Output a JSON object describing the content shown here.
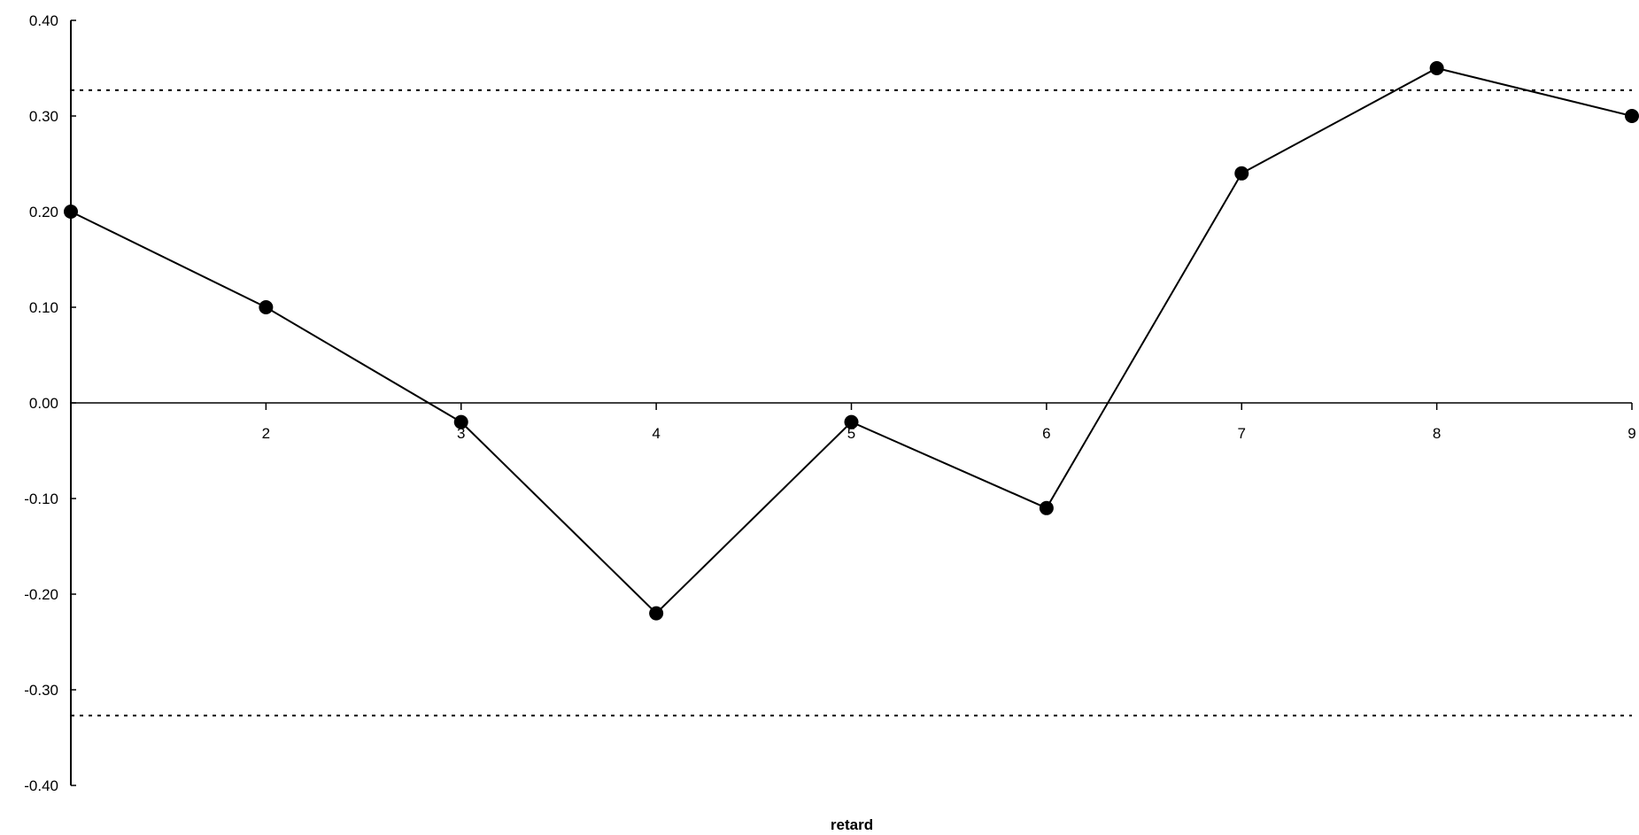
{
  "chart_data": {
    "type": "line",
    "title": "",
    "xlabel": "retard",
    "ylabel": "",
    "x": [
      1,
      2,
      3,
      4,
      5,
      6,
      7,
      8,
      9
    ],
    "x_tick_labels": [
      "2",
      "3",
      "4",
      "5",
      "6",
      "7",
      "8",
      "9"
    ],
    "series": [
      {
        "values": [
          0.2,
          0.1,
          -0.02,
          -0.22,
          -0.02,
          -0.11,
          0.24,
          0.35,
          0.3
        ]
      }
    ],
    "y_ticks": [
      0.4,
      0.3,
      0.2,
      0.1,
      0.0,
      -0.1,
      -0.2,
      -0.3,
      -0.4
    ],
    "y_tick_labels": [
      "0.40",
      "0.30",
      "0.20",
      "0.10",
      "0.00",
      "-0.10",
      "-0.20",
      "-0.30",
      "-0.40"
    ],
    "ylim": [
      -0.4,
      0.4
    ],
    "xlim": [
      1,
      9
    ],
    "reference_lines": [
      0.327,
      -0.327
    ],
    "grid": false,
    "legend": "none"
  }
}
